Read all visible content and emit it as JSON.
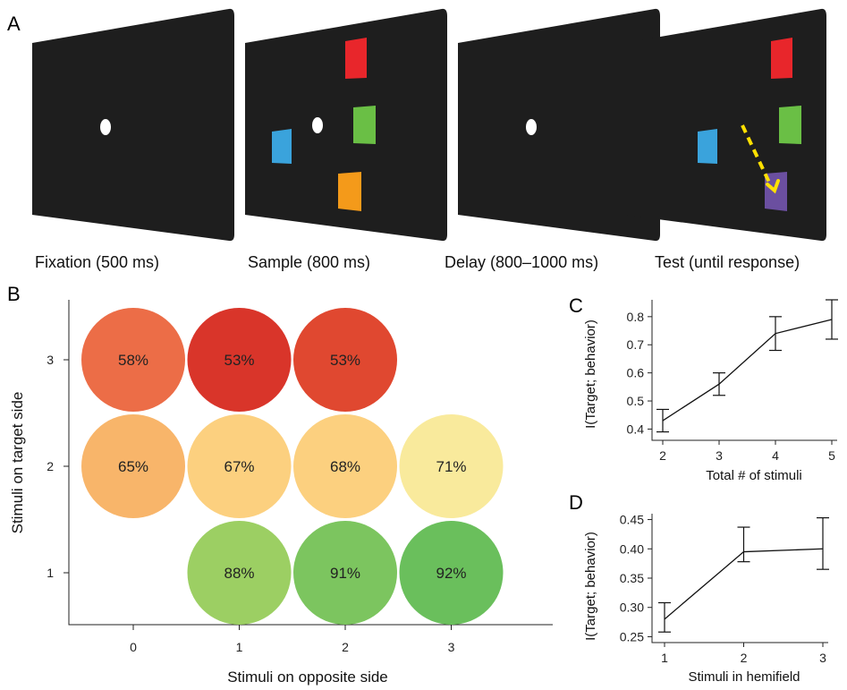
{
  "panel_labels": {
    "a": "A",
    "b": "B",
    "c": "C",
    "d": "D"
  },
  "task": {
    "screen_color": "#1e1e1e",
    "fixation_color": "#ffffff",
    "arrow_color": "#ffe000",
    "colors": {
      "red": "#e8262b",
      "green": "#6abf45",
      "blue": "#3aa3dc",
      "orange": "#f49a1a",
      "purple": "#6b4fa0"
    },
    "captions": [
      "Fixation (500 ms)",
      "Sample (800 ms)",
      "Delay (800–1000 ms)",
      "Test (until response)"
    ]
  },
  "chart_data": [
    {
      "type": "bubble",
      "panel": "B",
      "xlabel": "Stimuli on opposite side",
      "ylabel": "Stimuli on target side",
      "x_ticks": [
        "0",
        "1",
        "2",
        "3"
      ],
      "y_ticks": [
        "1",
        "2",
        "3"
      ],
      "points": [
        {
          "x": 0,
          "y": 3,
          "label": "58%",
          "value": 58,
          "color": "#ec6d47"
        },
        {
          "x": 1,
          "y": 3,
          "label": "53%",
          "value": 53,
          "color": "#d9352a"
        },
        {
          "x": 2,
          "y": 3,
          "label": "53%",
          "value": 53,
          "color": "#e04830"
        },
        {
          "x": 0,
          "y": 2,
          "label": "65%",
          "value": 65,
          "color": "#f8b56a"
        },
        {
          "x": 1,
          "y": 2,
          "label": "67%",
          "value": 67,
          "color": "#fcd07f"
        },
        {
          "x": 2,
          "y": 2,
          "label": "68%",
          "value": 68,
          "color": "#fcd07f"
        },
        {
          "x": 3,
          "y": 2,
          "label": "71%",
          "value": 71,
          "color": "#f9ea9c"
        },
        {
          "x": 1,
          "y": 1,
          "label": "88%",
          "value": 88,
          "color": "#9ccf63"
        },
        {
          "x": 2,
          "y": 1,
          "label": "91%",
          "value": 91,
          "color": "#7cc55f"
        },
        {
          "x": 3,
          "y": 1,
          "label": "92%",
          "value": 92,
          "color": "#6abf5c"
        }
      ]
    },
    {
      "type": "line",
      "panel": "C",
      "xlabel": "Total # of stimuli",
      "ylabel": "I(Target; behavior)",
      "x": [
        2,
        3,
        4,
        5
      ],
      "y": [
        0.43,
        0.56,
        0.74,
        0.79
      ],
      "err_low": [
        0.39,
        0.52,
        0.68,
        0.72
      ],
      "err_high": [
        0.47,
        0.6,
        0.8,
        0.86
      ],
      "xlim": [
        2,
        5
      ],
      "ylim": [
        0.36,
        0.86
      ],
      "x_ticks": [
        "2",
        "3",
        "4",
        "5"
      ],
      "y_ticks": [
        "0.4",
        "0.5",
        "0.6",
        "0.7",
        "0.8"
      ]
    },
    {
      "type": "line",
      "panel": "D",
      "xlabel": "Stimuli in hemifield",
      "ylabel": "I(Target; behavior)",
      "x": [
        1,
        2,
        3
      ],
      "y": [
        0.28,
        0.395,
        0.4
      ],
      "err_low": [
        0.258,
        0.378,
        0.365
      ],
      "err_high": [
        0.308,
        0.437,
        0.453
      ],
      "xlim": [
        1,
        3
      ],
      "ylim": [
        0.24,
        0.46
      ],
      "x_ticks": [
        "1",
        "2",
        "3"
      ],
      "y_ticks": [
        "0.25",
        "0.30",
        "0.35",
        "0.40",
        "0.45"
      ]
    }
  ]
}
